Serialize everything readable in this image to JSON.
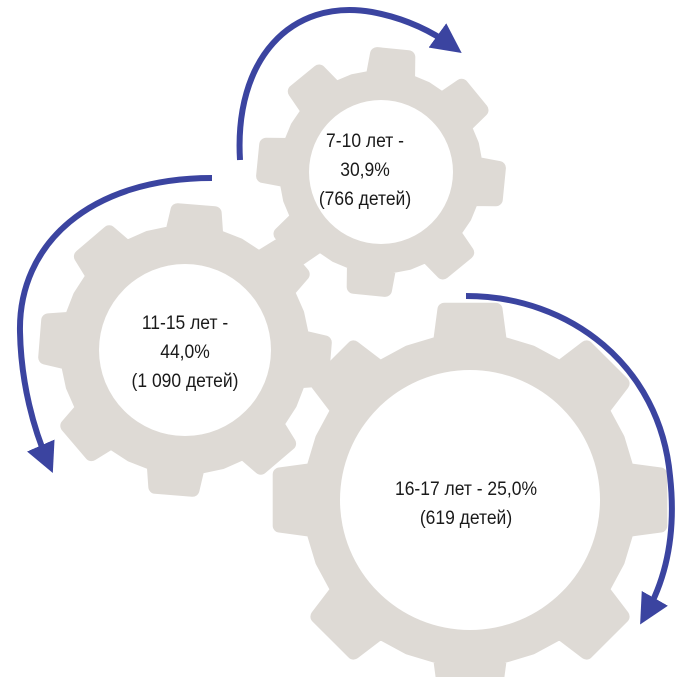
{
  "colors": {
    "gear": "#dedad5",
    "gear_hole": "#ffffff",
    "arrow": "#3b44a0",
    "text": "#1a1a1a"
  },
  "gears": [
    {
      "id": "small",
      "lines": [
        "7-10 лет -",
        "30,9%",
        "(766 детей)"
      ]
    },
    {
      "id": "medium",
      "lines": [
        "11-15 лет -",
        "44,0%",
        "(1 090 детей)"
      ]
    },
    {
      "id": "large",
      "lines": [
        "16-17 лет - 25,0%",
        "(619 детей)"
      ]
    }
  ]
}
